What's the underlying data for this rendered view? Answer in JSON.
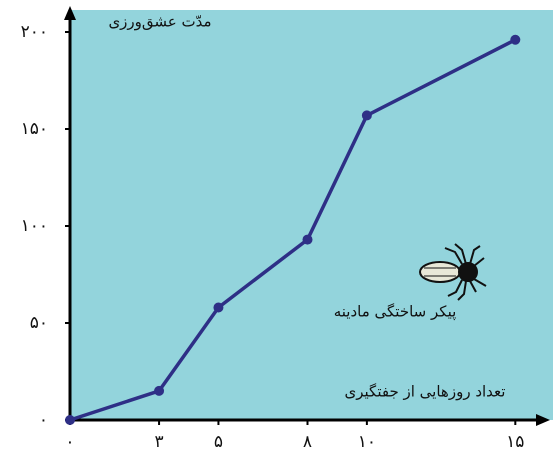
{
  "chart_data": {
    "type": "line",
    "y_label": "مدّت عشق‌ورزی",
    "x_label": "تعداد روزهایی از جفتگیری",
    "annotation": "پیکر ساختگی مادینه",
    "x": [
      0,
      3,
      5,
      8,
      10,
      15
    ],
    "values": [
      0,
      15,
      58,
      93,
      157,
      196
    ],
    "color": "#2e2f86",
    "xlim": [
      0,
      16
    ],
    "ylim": [
      0,
      210
    ],
    "xticks": [
      {
        "value": 0,
        "label": "۰"
      },
      {
        "value": 3,
        "label": "۳"
      },
      {
        "value": 5,
        "label": "۵"
      },
      {
        "value": 8,
        "label": "۸"
      },
      {
        "value": 10,
        "label": "۱۰"
      },
      {
        "value": 15,
        "label": "۱۵"
      }
    ],
    "yticks": [
      {
        "value": 0,
        "label": "۰"
      },
      {
        "value": 50,
        "label": "۵۰"
      },
      {
        "value": 100,
        "label": "۱۰۰"
      },
      {
        "value": 150,
        "label": "۱۵۰"
      },
      {
        "value": 200,
        "label": "۲۰۰"
      }
    ],
    "grid": false
  }
}
